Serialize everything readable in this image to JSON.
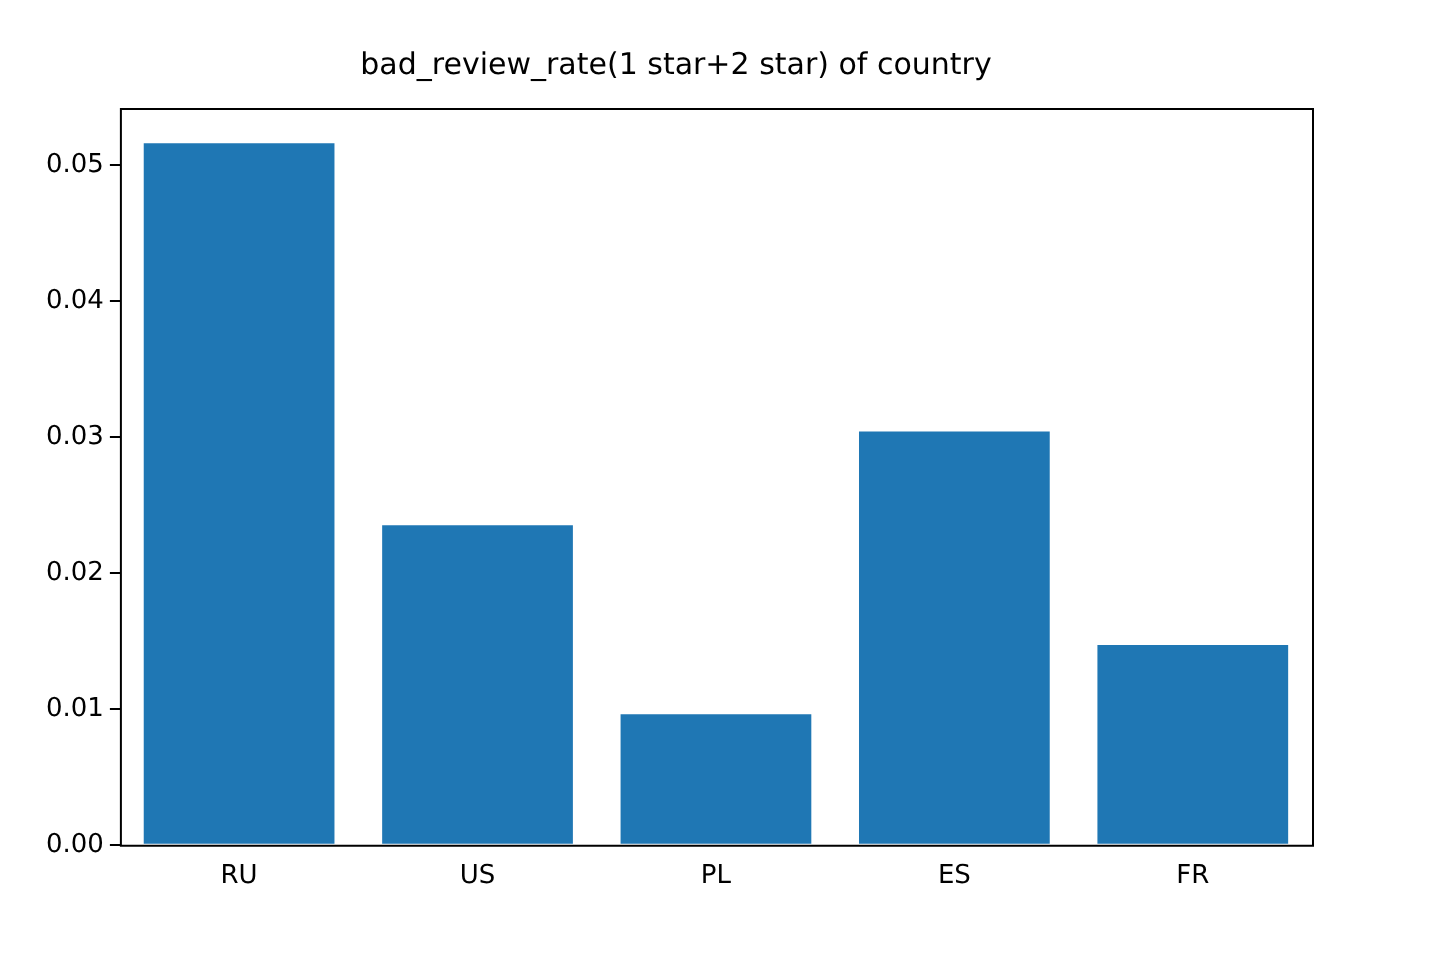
{
  "chart_data": {
    "type": "bar",
    "title": "bad_review_rate(1 star+2 star) of country",
    "categories": [
      "RU",
      "US",
      "PL",
      "ES",
      "FR"
    ],
    "values": [
      0.0516,
      0.0235,
      0.0096,
      0.0304,
      0.0147
    ],
    "color": "#1f77b4",
    "ylim": [
      0,
      0.0542
    ],
    "yticks": [
      {
        "value": 0,
        "label": "0.00"
      },
      {
        "value": 0.01,
        "label": "0.01"
      },
      {
        "value": 0.02,
        "label": "0.02"
      },
      {
        "value": 0.03,
        "label": "0.03"
      },
      {
        "value": 0.04,
        "label": "0.04"
      },
      {
        "value": 0.05,
        "label": "0.05"
      }
    ],
    "grid": false,
    "legend": false
  }
}
